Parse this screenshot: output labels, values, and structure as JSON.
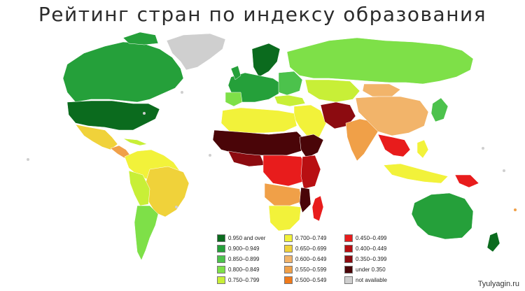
{
  "title": "Рейтинг стран по индексу образования",
  "watermark": "Tyulyagin.ru",
  "colors": {
    "ocean": "#ffffff",
    "na": "#cfcfcf",
    "c950": "#0b6b1e",
    "c900": "#25a03a",
    "c850": "#4cc24c",
    "c800": "#7ee048",
    "c750": "#c8ef37",
    "c700": "#f2f23a",
    "c650": "#f0d23a",
    "c600": "#f2b46a",
    "c550": "#f0a048",
    "c500": "#f07a1a",
    "c450": "#e81c1c",
    "c400": "#b80f12",
    "c350": "#8c0b10",
    "under": "#4a0508"
  },
  "legend": {
    "col1": [
      {
        "label": "0.950 and over",
        "color": "#0b6b1e"
      },
      {
        "label": "0.900–0.949",
        "color": "#25a03a"
      },
      {
        "label": "0.850–0.899",
        "color": "#4cc24c"
      },
      {
        "label": "0.800–0.849",
        "color": "#7ee048"
      },
      {
        "label": "0.750–0.799",
        "color": "#c8ef37"
      }
    ],
    "col2": [
      {
        "label": "0.700–0.749",
        "color": "#f2f23a"
      },
      {
        "label": "0.650–0.699",
        "color": "#f0d23a"
      },
      {
        "label": "0.600–0.649",
        "color": "#f2b46a"
      },
      {
        "label": "0.550–0.599",
        "color": "#f0a048"
      },
      {
        "label": "0.500–0.549",
        "color": "#f07a1a"
      }
    ],
    "col3": [
      {
        "label": "0.450–0.499",
        "color": "#e81c1c"
      },
      {
        "label": "0.400–0.449",
        "color": "#b80f12"
      },
      {
        "label": "0.350–0.399",
        "color": "#8c0b10"
      },
      {
        "label": "under 0.350",
        "color": "#4a0508"
      },
      {
        "label": "not available",
        "color": "#cfcfcf"
      }
    ]
  }
}
